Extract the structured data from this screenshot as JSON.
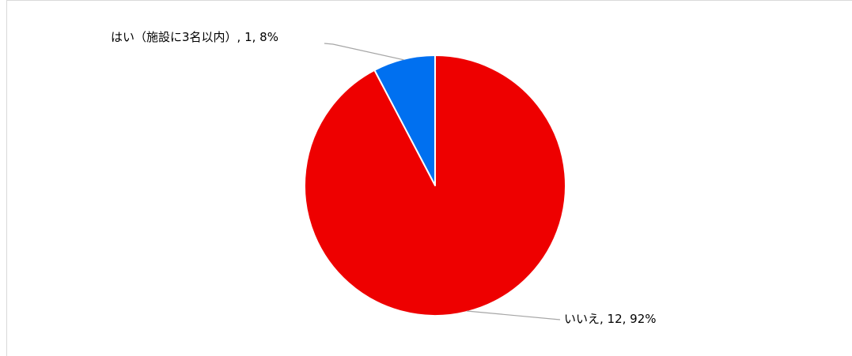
{
  "chart_data": {
    "type": "pie",
    "title": "",
    "categories": [
      "はい（施設に3名以内）",
      "いいえ"
    ],
    "values": [
      1,
      12
    ],
    "percentages": [
      "8%",
      "92%"
    ],
    "colors": [
      "#0070f0",
      "#ee0000"
    ],
    "data_labels": [
      "はい（施設に3名以内）, 1, 8%",
      "いいえ, 12, 92%"
    ],
    "legend": "none",
    "start_angle": "12 o'clock",
    "direction": "clockwise"
  }
}
